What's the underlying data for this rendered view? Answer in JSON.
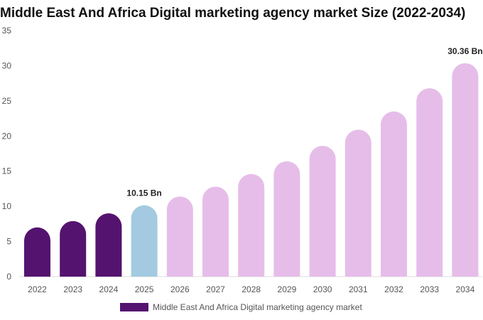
{
  "chart_data": {
    "type": "bar",
    "title": "Middle East And Africa Digital marketing agency market Size (2022-2034)",
    "categories": [
      "2022",
      "2023",
      "2024",
      "2025",
      "2026",
      "2027",
      "2028",
      "2029",
      "2030",
      "2031",
      "2032",
      "2033",
      "2034"
    ],
    "series": [
      {
        "name": "Middle East And Africa Digital marketing agency market",
        "values": [
          7.0,
          7.9,
          9.0,
          10.15,
          11.4,
          12.8,
          14.6,
          16.4,
          18.6,
          20.9,
          23.5,
          26.8,
          30.36
        ]
      }
    ],
    "ylim": [
      0,
      35
    ],
    "yticks": [
      "0",
      "5",
      "10",
      "15",
      "20",
      "25",
      "30",
      "35"
    ],
    "data_labels": [
      {
        "index": 3,
        "text": "10.15 Bn"
      },
      {
        "index": 12,
        "text": "30.36 Bn"
      }
    ],
    "colors": {
      "historical": "#54136f",
      "current": "#a3cae0",
      "forecast": "#e6bde9",
      "axis": "#dddddd"
    },
    "legend_position": "bottom",
    "grid": false
  }
}
